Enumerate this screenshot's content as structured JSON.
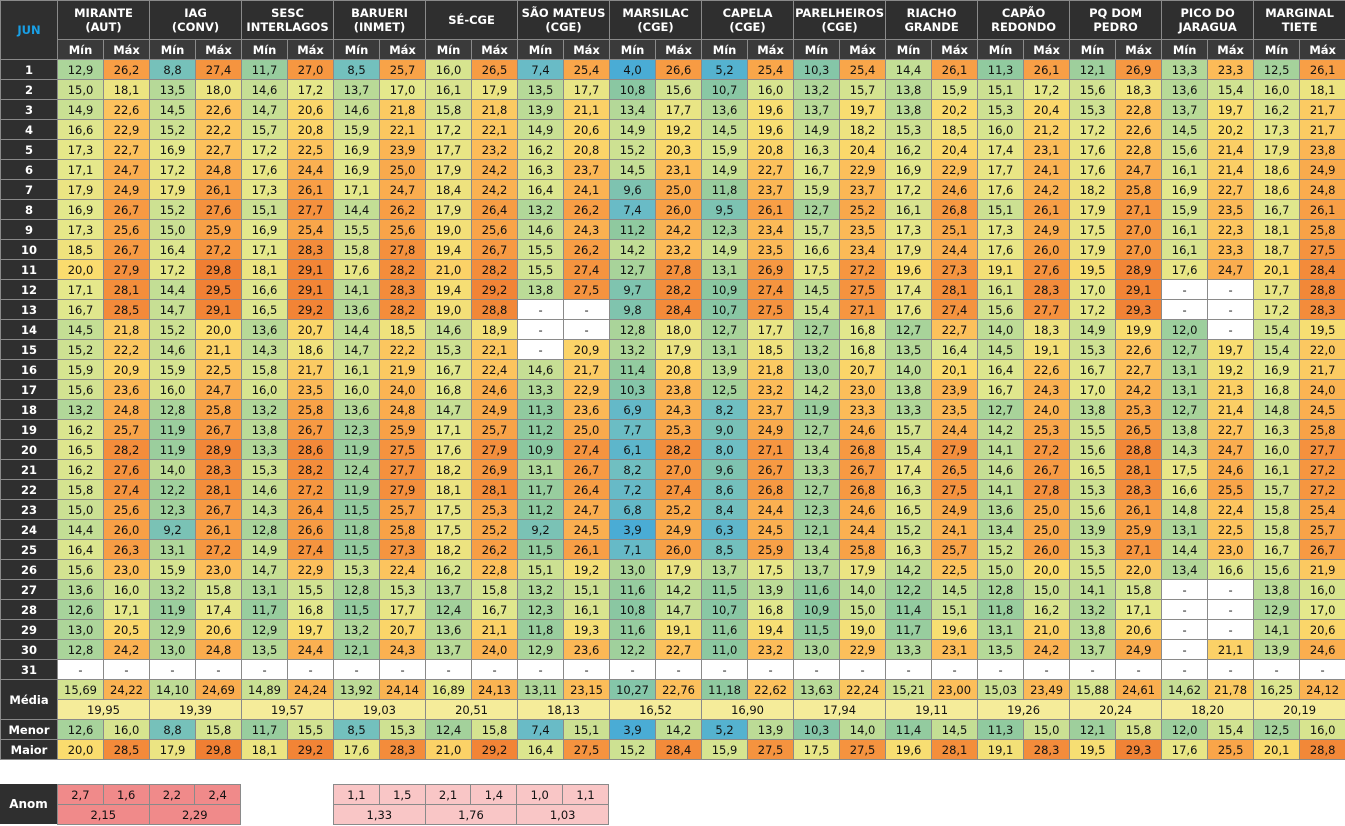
{
  "month": "JUN",
  "min_label": "Mín",
  "max_label": "Máx",
  "stations": [
    {
      "line1": "MIRANTE",
      "line2": "(AUT)"
    },
    {
      "line1": "IAG",
      "line2": "(CONV)"
    },
    {
      "line1": "SESC",
      "line2": "INTERLAGOS"
    },
    {
      "line1": "BARUERI",
      "line2": "(INMET)"
    },
    {
      "line1": "SÉ-CGE",
      "line2": ""
    },
    {
      "line1": "SÃO MATEUS",
      "line2": "(CGE)"
    },
    {
      "line1": "MARSILAC",
      "line2": "(CGE)"
    },
    {
      "line1": "CAPELA",
      "line2": "(CGE)"
    },
    {
      "line1": "PARELHEIROS",
      "line2": "(CGE)"
    },
    {
      "line1": "RIACHO",
      "line2": "GRANDE"
    },
    {
      "line1": "CAPÃO",
      "line2": "REDONDO"
    },
    {
      "line1": "PQ DOM",
      "line2": "PEDRO"
    },
    {
      "line1": "PICO DO",
      "line2": "JARAGUA"
    },
    {
      "line1": "MARGINAL",
      "line2": "TIETE"
    }
  ],
  "rows": [
    [
      "1",
      "12,9",
      "26,2",
      "8,8",
      "27,4",
      "11,7",
      "27,0",
      "8,5",
      "25,7",
      "16,0",
      "26,5",
      "7,4",
      "25,4",
      "4,0",
      "26,6",
      "5,2",
      "25,4",
      "10,3",
      "25,4",
      "14,4",
      "26,1",
      "11,3",
      "26,1",
      "12,1",
      "26,9",
      "13,3",
      "23,3",
      "12,5",
      "26,1"
    ],
    [
      "2",
      "15,0",
      "18,1",
      "13,5",
      "18,0",
      "14,6",
      "17,2",
      "13,7",
      "17,0",
      "16,1",
      "17,9",
      "13,5",
      "17,7",
      "10,8",
      "15,6",
      "10,7",
      "16,0",
      "13,2",
      "15,7",
      "13,8",
      "15,9",
      "15,1",
      "17,2",
      "15,6",
      "18,3",
      "13,6",
      "15,4",
      "16,0",
      "18,1"
    ],
    [
      "3",
      "14,9",
      "22,6",
      "14,5",
      "22,6",
      "14,7",
      "20,6",
      "14,6",
      "21,8",
      "15,8",
      "21,8",
      "13,9",
      "21,1",
      "13,4",
      "17,7",
      "13,6",
      "19,6",
      "13,7",
      "19,7",
      "13,8",
      "20,2",
      "15,3",
      "20,4",
      "15,3",
      "22,8",
      "13,7",
      "19,7",
      "16,2",
      "21,7"
    ],
    [
      "4",
      "16,6",
      "22,9",
      "15,2",
      "22,2",
      "15,7",
      "20,8",
      "15,9",
      "22,1",
      "17,2",
      "22,1",
      "14,9",
      "20,6",
      "14,9",
      "19,2",
      "14,5",
      "19,6",
      "14,9",
      "18,2",
      "15,3",
      "18,5",
      "16,0",
      "21,2",
      "17,2",
      "22,6",
      "14,5",
      "20,2",
      "17,3",
      "21,7"
    ],
    [
      "5",
      "17,3",
      "22,7",
      "16,9",
      "22,7",
      "17,2",
      "22,5",
      "16,9",
      "23,9",
      "17,7",
      "23,2",
      "16,2",
      "20,8",
      "15,2",
      "20,3",
      "15,9",
      "20,8",
      "16,3",
      "20,4",
      "16,2",
      "20,4",
      "17,4",
      "23,1",
      "17,6",
      "22,8",
      "15,6",
      "21,4",
      "17,9",
      "23,8"
    ],
    [
      "6",
      "17,1",
      "24,7",
      "17,2",
      "24,8",
      "17,6",
      "24,4",
      "16,9",
      "25,0",
      "17,9",
      "24,2",
      "16,3",
      "23,7",
      "14,5",
      "23,1",
      "14,9",
      "22,7",
      "16,7",
      "22,9",
      "16,9",
      "22,9",
      "17,7",
      "24,1",
      "17,6",
      "24,7",
      "16,1",
      "21,4",
      "18,6",
      "24,9"
    ],
    [
      "7",
      "17,9",
      "24,9",
      "17,9",
      "26,1",
      "17,3",
      "26,1",
      "17,1",
      "24,7",
      "18,4",
      "24,2",
      "16,4",
      "24,1",
      "9,6",
      "25,0",
      "11,8",
      "23,7",
      "15,9",
      "23,7",
      "17,2",
      "24,6",
      "17,6",
      "24,2",
      "18,2",
      "25,8",
      "16,9",
      "22,7",
      "18,6",
      "24,8"
    ],
    [
      "8",
      "16,9",
      "26,7",
      "15,2",
      "27,6",
      "15,1",
      "27,7",
      "14,4",
      "26,2",
      "17,9",
      "26,4",
      "13,2",
      "26,2",
      "7,4",
      "26,0",
      "9,5",
      "26,1",
      "12,7",
      "25,2",
      "16,1",
      "26,8",
      "15,1",
      "26,1",
      "17,9",
      "27,1",
      "15,9",
      "23,5",
      "16,7",
      "26,1"
    ],
    [
      "9",
      "17,3",
      "25,6",
      "15,0",
      "25,9",
      "16,9",
      "25,4",
      "15,5",
      "25,6",
      "19,0",
      "25,6",
      "14,6",
      "24,3",
      "11,2",
      "24,2",
      "12,3",
      "23,4",
      "15,7",
      "23,5",
      "17,3",
      "25,1",
      "17,3",
      "24,9",
      "17,5",
      "27,0",
      "16,1",
      "22,3",
      "18,1",
      "25,8"
    ],
    [
      "10",
      "18,5",
      "26,7",
      "16,4",
      "27,2",
      "17,1",
      "28,3",
      "15,8",
      "27,8",
      "19,4",
      "26,7",
      "15,5",
      "26,2",
      "14,2",
      "23,2",
      "14,9",
      "23,5",
      "16,6",
      "23,4",
      "17,9",
      "24,4",
      "17,6",
      "26,0",
      "17,9",
      "27,0",
      "16,1",
      "23,3",
      "18,7",
      "27,5"
    ],
    [
      "11",
      "20,0",
      "27,9",
      "17,2",
      "29,8",
      "18,1",
      "29,1",
      "17,6",
      "28,2",
      "21,0",
      "28,2",
      "15,5",
      "27,4",
      "12,7",
      "27,8",
      "13,1",
      "26,9",
      "17,5",
      "27,2",
      "19,6",
      "27,3",
      "19,1",
      "27,6",
      "19,5",
      "28,9",
      "17,6",
      "24,7",
      "20,1",
      "28,4"
    ],
    [
      "12",
      "17,1",
      "28,1",
      "14,4",
      "29,5",
      "16,6",
      "29,1",
      "14,1",
      "28,3",
      "19,4",
      "29,2",
      "13,8",
      "27,5",
      "9,7",
      "28,2",
      "10,9",
      "27,4",
      "14,5",
      "27,5",
      "17,4",
      "28,1",
      "16,1",
      "28,3",
      "17,0",
      "29,1",
      "-",
      "-",
      "17,7",
      "28,8"
    ],
    [
      "13",
      "16,7",
      "28,5",
      "14,7",
      "29,1",
      "16,5",
      "29,2",
      "13,6",
      "28,2",
      "19,0",
      "28,8",
      "-",
      "-",
      "9,8",
      "28,4",
      "10,7",
      "27,5",
      "15,4",
      "27,1",
      "17,6",
      "27,4",
      "15,6",
      "27,7",
      "17,2",
      "29,3",
      "-",
      "-",
      "17,2",
      "28,3"
    ],
    [
      "14",
      "14,5",
      "21,8",
      "15,2",
      "20,0",
      "13,6",
      "20,7",
      "14,4",
      "18,5",
      "14,6",
      "18,9",
      "-",
      "-",
      "12,8",
      "18,0",
      "12,7",
      "17,7",
      "12,7",
      "16,8",
      "12,7",
      "22,7",
      "14,0",
      "18,3",
      "14,9",
      "19,9",
      "12,0",
      "-",
      "15,4",
      "19,5"
    ],
    [
      "15",
      "15,2",
      "22,2",
      "14,6",
      "21,1",
      "14,3",
      "18,6",
      "14,7",
      "22,2",
      "15,3",
      "22,1",
      "-",
      "20,9",
      "13,2",
      "17,9",
      "13,1",
      "18,5",
      "13,2",
      "16,8",
      "13,5",
      "16,4",
      "14,5",
      "19,1",
      "15,3",
      "22,6",
      "12,7",
      "19,7",
      "15,4",
      "22,0"
    ],
    [
      "16",
      "15,9",
      "20,9",
      "15,9",
      "22,5",
      "15,8",
      "21,7",
      "16,1",
      "21,9",
      "16,7",
      "22,4",
      "14,6",
      "21,7",
      "11,4",
      "20,8",
      "13,9",
      "21,8",
      "13,0",
      "20,7",
      "14,0",
      "20,1",
      "16,4",
      "22,6",
      "16,7",
      "22,7",
      "13,1",
      "19,2",
      "16,9",
      "21,7"
    ],
    [
      "17",
      "15,6",
      "23,6",
      "16,0",
      "24,7",
      "16,0",
      "23,5",
      "16,0",
      "24,0",
      "16,8",
      "24,6",
      "13,3",
      "22,9",
      "10,3",
      "23,8",
      "12,5",
      "23,2",
      "14,2",
      "23,0",
      "13,8",
      "23,9",
      "16,7",
      "24,3",
      "17,0",
      "24,2",
      "13,1",
      "21,3",
      "16,8",
      "24,0"
    ],
    [
      "18",
      "13,2",
      "24,8",
      "12,8",
      "25,8",
      "13,2",
      "25,8",
      "13,6",
      "24,8",
      "14,7",
      "24,9",
      "11,3",
      "23,6",
      "6,9",
      "24,3",
      "8,2",
      "23,7",
      "11,9",
      "23,3",
      "13,3",
      "23,5",
      "12,7",
      "24,0",
      "13,8",
      "25,3",
      "12,7",
      "21,4",
      "14,8",
      "24,5"
    ],
    [
      "19",
      "16,2",
      "25,7",
      "11,9",
      "26,7",
      "13,8",
      "26,7",
      "12,3",
      "25,9",
      "17,1",
      "25,7",
      "11,2",
      "25,0",
      "7,7",
      "25,3",
      "9,0",
      "24,9",
      "12,7",
      "24,6",
      "15,7",
      "24,4",
      "14,2",
      "25,3",
      "15,5",
      "26,5",
      "13,8",
      "22,7",
      "16,3",
      "25,8"
    ],
    [
      "20",
      "16,5",
      "28,2",
      "11,9",
      "28,9",
      "13,3",
      "28,6",
      "11,9",
      "27,5",
      "17,6",
      "27,9",
      "10,9",
      "27,4",
      "6,1",
      "28,2",
      "8,0",
      "27,1",
      "13,4",
      "26,8",
      "15,4",
      "27,9",
      "14,1",
      "27,2",
      "15,6",
      "28,8",
      "14,3",
      "24,7",
      "16,0",
      "27,7"
    ],
    [
      "21",
      "16,2",
      "27,6",
      "14,0",
      "28,3",
      "15,3",
      "28,2",
      "12,4",
      "27,7",
      "18,2",
      "26,9",
      "13,1",
      "26,7",
      "8,2",
      "27,0",
      "9,6",
      "26,7",
      "13,3",
      "26,7",
      "17,4",
      "26,5",
      "14,6",
      "26,7",
      "16,5",
      "28,1",
      "17,5",
      "24,6",
      "16,1",
      "27,2"
    ],
    [
      "22",
      "15,8",
      "27,4",
      "12,2",
      "28,1",
      "14,6",
      "27,2",
      "11,9",
      "27,9",
      "18,1",
      "28,1",
      "11,7",
      "26,4",
      "7,2",
      "27,4",
      "8,6",
      "26,8",
      "12,7",
      "26,8",
      "16,3",
      "27,5",
      "14,1",
      "27,8",
      "15,3",
      "28,3",
      "16,6",
      "25,5",
      "15,7",
      "27,2"
    ],
    [
      "23",
      "15,0",
      "25,6",
      "12,3",
      "26,7",
      "14,3",
      "26,4",
      "11,5",
      "25,7",
      "17,5",
      "25,3",
      "11,2",
      "24,7",
      "6,8",
      "25,2",
      "8,4",
      "24,4",
      "12,3",
      "24,6",
      "16,5",
      "24,9",
      "13,6",
      "25,0",
      "15,6",
      "26,1",
      "14,8",
      "22,4",
      "15,8",
      "25,4"
    ],
    [
      "24",
      "14,4",
      "26,0",
      "9,2",
      "26,1",
      "12,8",
      "26,6",
      "11,8",
      "25,8",
      "17,5",
      "25,2",
      "9,2",
      "24,5",
      "3,9",
      "24,9",
      "6,3",
      "24,5",
      "12,1",
      "24,4",
      "15,2",
      "24,1",
      "13,4",
      "25,0",
      "13,9",
      "25,9",
      "13,1",
      "22,5",
      "15,8",
      "25,7"
    ],
    [
      "25",
      "16,4",
      "26,3",
      "13,1",
      "27,2",
      "14,9",
      "27,4",
      "11,5",
      "27,3",
      "18,2",
      "26,2",
      "11,5",
      "26,1",
      "7,1",
      "26,0",
      "8,5",
      "25,9",
      "13,4",
      "25,8",
      "16,3",
      "25,7",
      "15,2",
      "26,0",
      "15,3",
      "27,1",
      "14,4",
      "23,0",
      "16,7",
      "26,7"
    ],
    [
      "26",
      "15,6",
      "23,0",
      "15,9",
      "23,0",
      "14,7",
      "22,9",
      "15,3",
      "22,4",
      "16,2",
      "22,8",
      "15,1",
      "19,2",
      "13,0",
      "17,9",
      "13,7",
      "17,5",
      "13,7",
      "17,9",
      "14,2",
      "22,5",
      "15,0",
      "20,0",
      "15,5",
      "22,0",
      "13,4",
      "16,6",
      "15,6",
      "21,9"
    ],
    [
      "27",
      "13,6",
      "16,0",
      "13,2",
      "15,8",
      "13,1",
      "15,5",
      "12,8",
      "15,3",
      "13,7",
      "15,8",
      "13,2",
      "15,1",
      "11,6",
      "14,2",
      "11,5",
      "13,9",
      "11,6",
      "14,0",
      "12,2",
      "14,5",
      "12,8",
      "15,0",
      "14,1",
      "15,8",
      "-",
      "-",
      "13,8",
      "16,0"
    ],
    [
      "28",
      "12,6",
      "17,1",
      "11,9",
      "17,4",
      "11,7",
      "16,8",
      "11,5",
      "17,7",
      "12,4",
      "16,7",
      "12,3",
      "16,1",
      "10,8",
      "14,7",
      "10,7",
      "16,8",
      "10,9",
      "15,0",
      "11,4",
      "15,1",
      "11,8",
      "16,2",
      "13,2",
      "17,1",
      "-",
      "-",
      "12,9",
      "17,0"
    ],
    [
      "29",
      "13,0",
      "20,5",
      "12,9",
      "20,6",
      "12,9",
      "19,7",
      "13,2",
      "20,7",
      "13,6",
      "21,1",
      "11,8",
      "19,3",
      "11,6",
      "19,1",
      "11,6",
      "19,4",
      "11,5",
      "19,0",
      "11,7",
      "19,6",
      "13,1",
      "21,0",
      "13,8",
      "20,6",
      "-",
      "-",
      "14,1",
      "20,6"
    ],
    [
      "30",
      "12,8",
      "24,2",
      "13,0",
      "24,8",
      "13,5",
      "24,4",
      "12,1",
      "24,3",
      "13,7",
      "24,0",
      "12,9",
      "23,6",
      "12,2",
      "22,7",
      "11,0",
      "23,2",
      "13,0",
      "22,9",
      "13,3",
      "23,1",
      "13,5",
      "24,2",
      "13,7",
      "24,9",
      "-",
      "21,1",
      "13,9",
      "24,6"
    ],
    [
      "31",
      "-",
      "-",
      "-",
      "-",
      "-",
      "-",
      "-",
      "-",
      "-",
      "-",
      "-",
      "-",
      "-",
      "-",
      "-",
      "-",
      "-",
      "-",
      "-",
      "-",
      "-",
      "-",
      "-",
      "-",
      "-",
      "-",
      "-",
      "-"
    ]
  ],
  "media_label": "Média",
  "media_minmax": [
    "15,69",
    "24,22",
    "14,10",
    "24,69",
    "14,89",
    "24,24",
    "13,92",
    "24,14",
    "16,89",
    "24,13",
    "13,11",
    "23,15",
    "10,27",
    "22,76",
    "11,18",
    "22,62",
    "13,63",
    "22,24",
    "15,21",
    "23,00",
    "15,03",
    "23,49",
    "15,88",
    "24,61",
    "14,62",
    "21,78",
    "16,25",
    "24,12"
  ],
  "media_avg": [
    "19,95",
    "19,39",
    "19,57",
    "19,03",
    "20,51",
    "18,13",
    "16,52",
    "16,90",
    "17,94",
    "19,11",
    "19,26",
    "20,24",
    "18,20",
    "20,19"
  ],
  "menor_label": "Menor",
  "menor": [
    "12,6",
    "16,0",
    "8,8",
    "15,8",
    "11,7",
    "15,5",
    "8,5",
    "15,3",
    "12,4",
    "15,8",
    "7,4",
    "15,1",
    "3,9",
    "14,2",
    "5,2",
    "13,9",
    "10,3",
    "14,0",
    "11,4",
    "14,5",
    "11,3",
    "15,0",
    "12,1",
    "15,8",
    "12,0",
    "15,4",
    "12,5",
    "16,0"
  ],
  "maior_label": "Maior",
  "maior": [
    "20,0",
    "28,5",
    "17,9",
    "29,8",
    "18,1",
    "29,2",
    "17,6",
    "28,3",
    "21,0",
    "29,2",
    "16,4",
    "27,5",
    "15,2",
    "28,4",
    "15,9",
    "27,5",
    "17,5",
    "27,5",
    "19,6",
    "28,1",
    "19,1",
    "28,3",
    "19,5",
    "29,3",
    "17,6",
    "25,5",
    "20,1",
    "28,8"
  ],
  "anom_label": "Anom",
  "anom_group1": {
    "values": [
      "2,7",
      "1,6",
      "2,2",
      "2,4"
    ],
    "avgs": [
      "2,15",
      "2,29"
    ]
  },
  "anom_group2": {
    "values": [
      "1,1",
      "1,5",
      "2,1",
      "1,4",
      "1,0",
      "1,1"
    ],
    "avgs": [
      "1,33",
      "1,76",
      "1,03"
    ]
  },
  "colors": {
    "header_bg": "#2f2f2f",
    "header_text": "#ffffff",
    "month_text": "#19a0e6",
    "average_bg": "#f5ec9a",
    "anom_strong": "#f08a8a",
    "anom_light": "#f9c6c6",
    "no_data_bg": "#ffffff"
  }
}
